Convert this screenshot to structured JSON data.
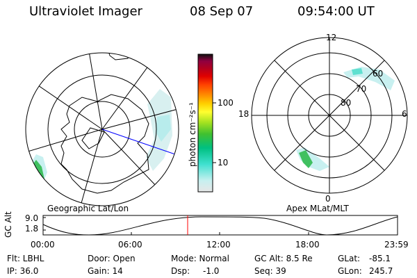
{
  "header": {
    "instrument": "Ultraviolet Imager",
    "date": "08 Sep 07",
    "time": "09:54:00 UT"
  },
  "colorbar": {
    "unit_label": "photon cm⁻²s⁻¹",
    "ticks": [
      "100",
      "10"
    ],
    "scale": "log",
    "colors": [
      "#e6e6e6",
      "#c8f0f0",
      "#40e0d0",
      "#00c080",
      "#40c030",
      "#a0e020",
      "#ffff30",
      "#ffd000",
      "#ff9000",
      "#ff4000",
      "#e00000",
      "#b00020",
      "#900040",
      "#400040",
      "#101010"
    ]
  },
  "left_map": {
    "label": "Geographic Lat/Lon"
  },
  "right_map": {
    "label": "Apex MLat/MLT",
    "mlt_labels": {
      "top": "12",
      "left": "18",
      "right": "6",
      "bottom": "0"
    },
    "lat_labels": [
      "60",
      "70",
      "80"
    ]
  },
  "timeline": {
    "ylabel": "GC Alt",
    "yticks": [
      "9.0",
      "1.8"
    ],
    "xticks": [
      "00:00",
      "06:00",
      "12:00",
      "18:00",
      "23:59"
    ],
    "marker_time": "09:54"
  },
  "info": {
    "flt": "Flt: LBHL",
    "ip": "IP: 36.0",
    "door": "Door: Open",
    "gain": "Gain: 14",
    "mode": "Mode: Normal",
    "dsp_label": "Dsp:",
    "dsp_value": "-1.0",
    "gc_alt": "GC Alt: 8.5 Re",
    "seq": "Seq: 39",
    "glat_label": "GLat:",
    "glat_value": "-85.1",
    "glon_label": "GLon:",
    "glon_value": "245.7"
  }
}
